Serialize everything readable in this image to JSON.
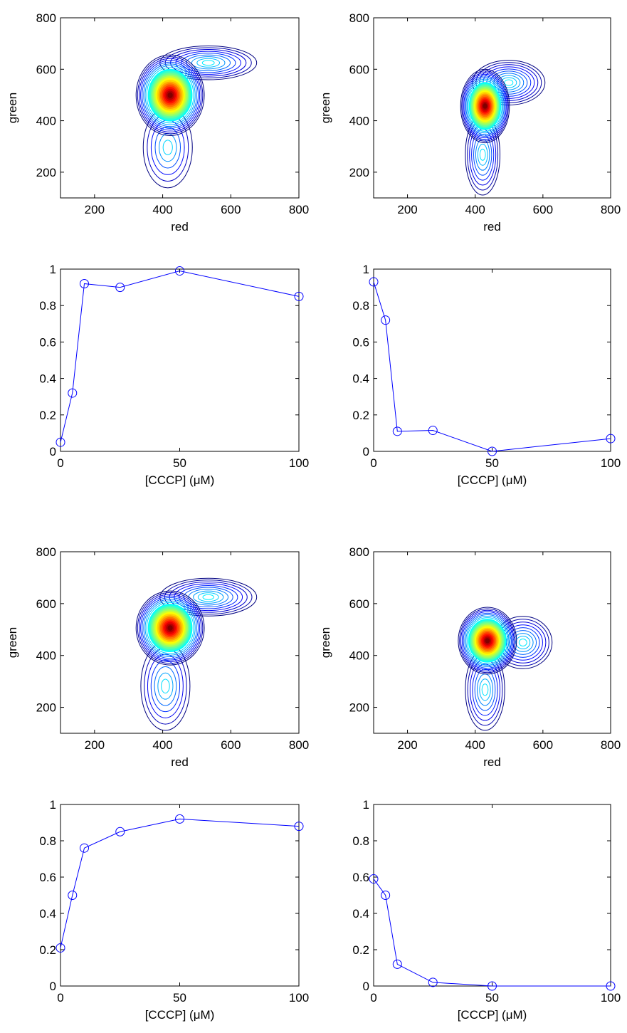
{
  "chart_data": [
    {
      "type": "contour",
      "xlabel": "red",
      "ylabel": "green",
      "xlim": [
        100,
        800
      ],
      "ylim": [
        100,
        800
      ],
      "xticks": [
        200,
        400,
        600,
        800
      ],
      "yticks": [
        200,
        400,
        600,
        800
      ]
    },
    {
      "type": "contour",
      "xlabel": "red",
      "ylabel": "green",
      "xlim": [
        100,
        800
      ],
      "ylim": [
        100,
        800
      ],
      "xticks": [
        200,
        400,
        600,
        800
      ],
      "yticks": [
        200,
        400,
        600,
        800
      ]
    },
    {
      "type": "line",
      "xlabel": "[CCCP] (μM)",
      "x": [
        0,
        5,
        10,
        25,
        50,
        100
      ],
      "series": [
        {
          "color": "#0000ff",
          "values": [
            0.05,
            0.32,
            0.92,
            0.9,
            0.99,
            0.85
          ]
        }
      ],
      "xlim": [
        0,
        100
      ],
      "ylim": [
        0,
        1
      ],
      "xticks": [
        0,
        50,
        100
      ],
      "yticks": [
        0,
        0.2,
        0.4,
        0.6,
        0.8,
        1
      ]
    },
    {
      "type": "line",
      "xlabel": "[CCCP] (μM)",
      "x": [
        0,
        5,
        10,
        25,
        50,
        100
      ],
      "series": [
        {
          "color": "#0000ff",
          "values": [
            0.93,
            0.72,
            0.11,
            0.115,
            0.0,
            0.07
          ]
        }
      ],
      "xlim": [
        0,
        100
      ],
      "ylim": [
        0,
        1
      ],
      "xticks": [
        0,
        50,
        100
      ],
      "yticks": [
        0,
        0.2,
        0.4,
        0.6,
        0.8,
        1
      ]
    },
    {
      "type": "contour",
      "xlabel": "red",
      "ylabel": "green",
      "xlim": [
        100,
        800
      ],
      "ylim": [
        100,
        800
      ],
      "xticks": [
        200,
        400,
        600,
        800
      ],
      "yticks": [
        200,
        400,
        600,
        800
      ]
    },
    {
      "type": "contour",
      "xlabel": "red",
      "ylabel": "green",
      "xlim": [
        100,
        800
      ],
      "ylim": [
        100,
        800
      ],
      "xticks": [
        200,
        400,
        600,
        800
      ],
      "yticks": [
        200,
        400,
        600,
        800
      ]
    },
    {
      "type": "line",
      "xlabel": "[CCCP] (μM)",
      "x": [
        0,
        5,
        10,
        25,
        50,
        100
      ],
      "series": [
        {
          "color": "#0000ff",
          "values": [
            0.21,
            0.5,
            0.76,
            0.85,
            0.92,
            0.88
          ]
        }
      ],
      "xlim": [
        0,
        100
      ],
      "ylim": [
        0,
        1
      ],
      "xticks": [
        0,
        50,
        100
      ],
      "yticks": [
        0,
        0.2,
        0.4,
        0.6,
        0.8,
        1
      ]
    },
    {
      "type": "line",
      "xlabel": "[CCCP] (μM)",
      "x": [
        0,
        5,
        10,
        25,
        50,
        100
      ],
      "series": [
        {
          "color": "#0000ff",
          "values": [
            0.59,
            0.5,
            0.12,
            0.02,
            0.0,
            0.0
          ]
        }
      ],
      "xlim": [
        0,
        100
      ],
      "ylim": [
        0,
        1
      ],
      "xticks": [
        0,
        50,
        100
      ],
      "yticks": [
        0,
        0.2,
        0.4,
        0.6,
        0.8,
        1
      ]
    }
  ]
}
